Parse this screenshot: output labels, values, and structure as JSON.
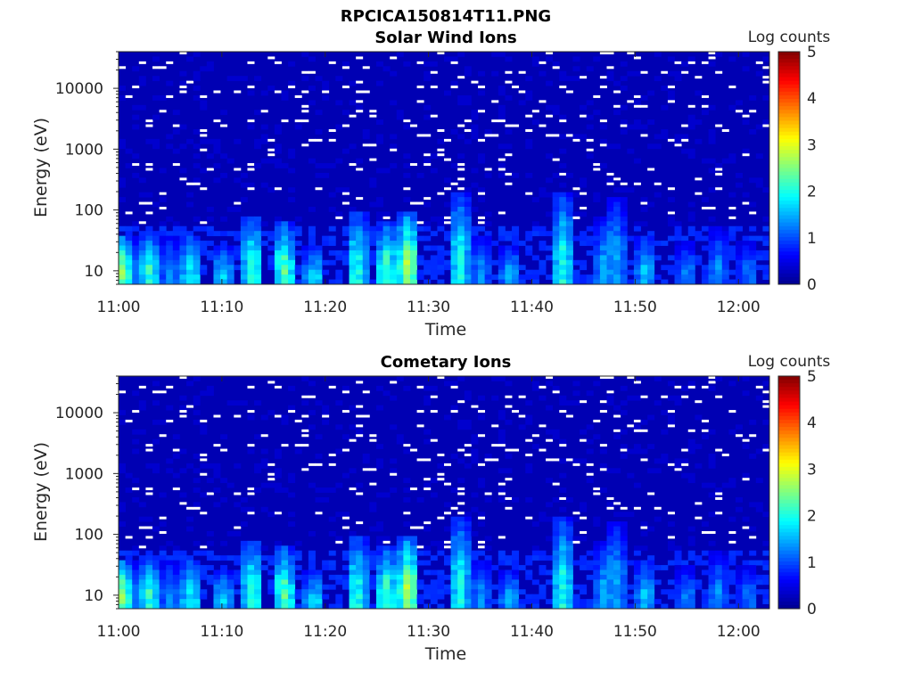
{
  "figure": {
    "title": "RPCICA150814T11.PNG",
    "colormap": [
      "#00008f",
      "#0000ff",
      "#0080ff",
      "#00ffff",
      "#80ff80",
      "#ffff00",
      "#ff8000",
      "#ff0000",
      "#800000"
    ],
    "sparse_color": "#ffffff"
  },
  "chart_data": [
    {
      "type": "heatmap",
      "title": "Solar Wind Ions",
      "xlabel": "Time",
      "ylabel": "Energy (eV)",
      "y_scale": "log",
      "ylim": [
        6,
        40000
      ],
      "xlim": [
        "11:00",
        "12:03"
      ],
      "x_ticks": [
        "11:00",
        "11:10",
        "11:20",
        "11:30",
        "11:40",
        "11:50",
        "12:00"
      ],
      "y_ticks": [
        "10",
        "100",
        "1000",
        "10000"
      ],
      "colorbar": {
        "label": "Log counts",
        "range": [
          0,
          5
        ],
        "ticks": [
          "0",
          "1",
          "2",
          "3",
          "4",
          "5"
        ]
      },
      "background_level": 0.2,
      "bursts": [
        {
          "time": "11:00",
          "peak_log_counts": 3.2,
          "top_eV": 40
        },
        {
          "time": "11:02",
          "peak_log_counts": 1.6,
          "top_eV": 35
        },
        {
          "time": "11:03",
          "peak_log_counts": 2.4,
          "top_eV": 40
        },
        {
          "time": "11:05",
          "peak_log_counts": 1.5,
          "top_eV": 40
        },
        {
          "time": "11:07",
          "peak_log_counts": 2.2,
          "top_eV": 40
        },
        {
          "time": "11:10",
          "peak_log_counts": 2.0,
          "top_eV": 25
        },
        {
          "time": "11:13",
          "peak_log_counts": 2.4,
          "top_eV": 80
        },
        {
          "time": "11:16",
          "peak_log_counts": 2.6,
          "top_eV": 60
        },
        {
          "time": "11:19",
          "peak_log_counts": 2.0,
          "top_eV": 25
        },
        {
          "time": "11:23",
          "peak_log_counts": 2.4,
          "top_eV": 90
        },
        {
          "time": "11:26",
          "peak_log_counts": 2.5,
          "top_eV": 60
        },
        {
          "time": "11:28",
          "peak_log_counts": 3.0,
          "top_eV": 90
        },
        {
          "time": "11:33",
          "peak_log_counts": 2.2,
          "top_eV": 200
        },
        {
          "time": "11:35",
          "peak_log_counts": 1.5,
          "top_eV": 40
        },
        {
          "time": "11:38",
          "peak_log_counts": 1.8,
          "top_eV": 25
        },
        {
          "time": "11:43",
          "peak_log_counts": 2.2,
          "top_eV": 200
        },
        {
          "time": "11:47",
          "peak_log_counts": 1.6,
          "top_eV": 80
        },
        {
          "time": "11:48",
          "peak_log_counts": 1.8,
          "top_eV": 150
        },
        {
          "time": "11:51",
          "peak_log_counts": 1.8,
          "top_eV": 40
        },
        {
          "time": "11:55",
          "peak_log_counts": 1.5,
          "top_eV": 30
        },
        {
          "time": "11:58",
          "peak_log_counts": 1.5,
          "top_eV": 50
        },
        {
          "time": "12:01",
          "peak_log_counts": 1.4,
          "top_eV": 30
        }
      ]
    },
    {
      "type": "heatmap",
      "title": "Cometary Ions",
      "xlabel": "Time",
      "ylabel": "Energy (eV)",
      "y_scale": "log",
      "ylim": [
        6,
        40000
      ],
      "xlim": [
        "11:00",
        "12:03"
      ],
      "x_ticks": [
        "11:00",
        "11:10",
        "11:20",
        "11:30",
        "11:40",
        "11:50",
        "12:00"
      ],
      "y_ticks": [
        "10",
        "100",
        "1000",
        "10000"
      ],
      "colorbar": {
        "label": "Log counts",
        "range": [
          0,
          5
        ],
        "ticks": [
          "0",
          "1",
          "2",
          "3",
          "4",
          "5"
        ]
      },
      "background_level": 0.2,
      "bursts": [
        {
          "time": "11:00",
          "peak_log_counts": 3.2,
          "top_eV": 40
        },
        {
          "time": "11:02",
          "peak_log_counts": 1.6,
          "top_eV": 35
        },
        {
          "time": "11:03",
          "peak_log_counts": 2.4,
          "top_eV": 40
        },
        {
          "time": "11:05",
          "peak_log_counts": 1.5,
          "top_eV": 40
        },
        {
          "time": "11:07",
          "peak_log_counts": 2.2,
          "top_eV": 40
        },
        {
          "time": "11:10",
          "peak_log_counts": 2.0,
          "top_eV": 25
        },
        {
          "time": "11:13",
          "peak_log_counts": 2.4,
          "top_eV": 80
        },
        {
          "time": "11:16",
          "peak_log_counts": 2.6,
          "top_eV": 60
        },
        {
          "time": "11:19",
          "peak_log_counts": 2.0,
          "top_eV": 25
        },
        {
          "time": "11:23",
          "peak_log_counts": 2.4,
          "top_eV": 90
        },
        {
          "time": "11:26",
          "peak_log_counts": 2.5,
          "top_eV": 60
        },
        {
          "time": "11:28",
          "peak_log_counts": 3.0,
          "top_eV": 90
        },
        {
          "time": "11:33",
          "peak_log_counts": 2.2,
          "top_eV": 200
        },
        {
          "time": "11:35",
          "peak_log_counts": 1.5,
          "top_eV": 40
        },
        {
          "time": "11:38",
          "peak_log_counts": 1.8,
          "top_eV": 25
        },
        {
          "time": "11:43",
          "peak_log_counts": 2.2,
          "top_eV": 200
        },
        {
          "time": "11:47",
          "peak_log_counts": 1.6,
          "top_eV": 80
        },
        {
          "time": "11:48",
          "peak_log_counts": 1.8,
          "top_eV": 150
        },
        {
          "time": "11:51",
          "peak_log_counts": 1.8,
          "top_eV": 40
        },
        {
          "time": "11:55",
          "peak_log_counts": 1.5,
          "top_eV": 30
        },
        {
          "time": "11:58",
          "peak_log_counts": 1.5,
          "top_eV": 50
        },
        {
          "time": "12:01",
          "peak_log_counts": 1.4,
          "top_eV": 30
        }
      ]
    }
  ]
}
